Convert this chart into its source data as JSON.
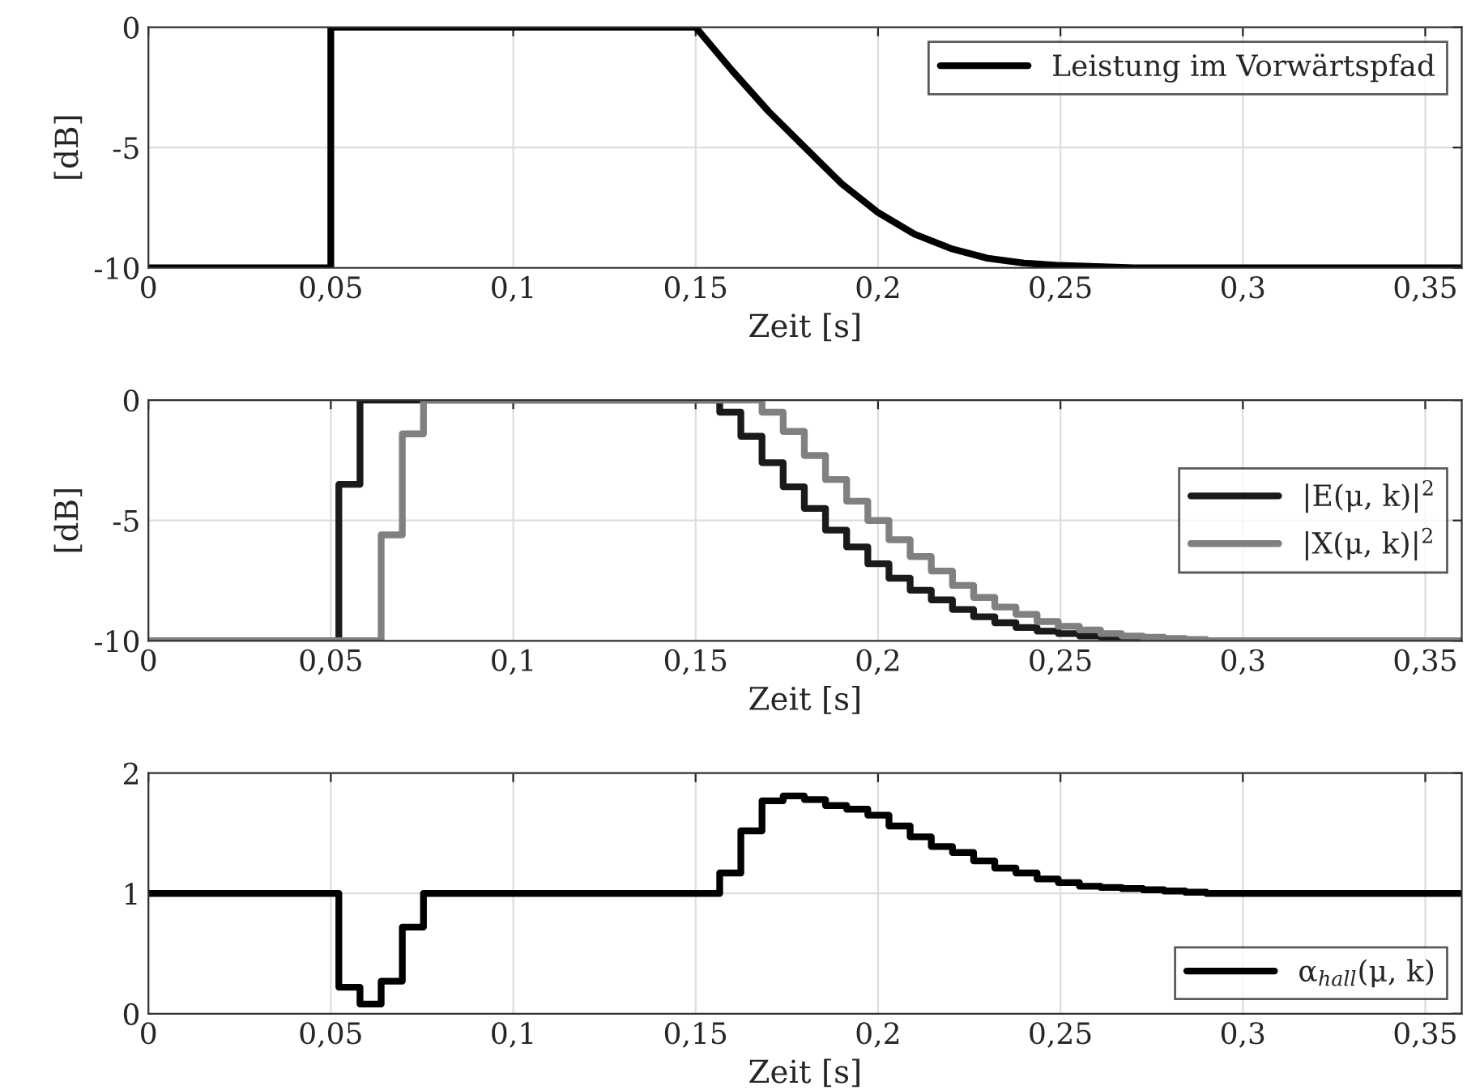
{
  "chart_data": [
    {
      "type": "line",
      "ylabel": "[dB]",
      "xlabel": "Zeit [s]",
      "xlim": [
        0,
        0.36
      ],
      "ylim": [
        -10,
        0
      ],
      "xticks": [
        0,
        {
          "value": 0.05,
          "label": "0,05"
        },
        {
          "value": 0.1,
          "label": "0,1"
        },
        {
          "value": 0.15,
          "label": "0,15"
        },
        {
          "value": 0.2,
          "label": "0,2"
        },
        {
          "value": 0.25,
          "label": "0,25"
        },
        {
          "value": 0.3,
          "label": "0,3"
        },
        {
          "value": 0.35,
          "label": "0,35"
        }
      ],
      "yticks": [
        -10,
        -5,
        0
      ],
      "grid": true,
      "legend": "top right",
      "series": [
        {
          "name": "Leistung im Vorwärtspfad",
          "color": "#000000",
          "x": [
            0,
            0.05,
            0.05,
            0.15,
            0.16,
            0.17,
            0.18,
            0.19,
            0.2,
            0.21,
            0.22,
            0.23,
            0.24,
            0.25,
            0.27,
            0.36
          ],
          "values": [
            -10,
            -10,
            0,
            0,
            -1.8,
            -3.5,
            -5.0,
            -6.5,
            -7.7,
            -8.6,
            -9.2,
            -9.6,
            -9.8,
            -9.9,
            -10,
            -10
          ]
        }
      ]
    },
    {
      "type": "step",
      "ylabel": "[dB]",
      "xlabel": "Zeit [s]",
      "xlim": [
        0,
        0.36
      ],
      "ylim": [
        -10,
        0
      ],
      "xticks": [
        0,
        {
          "value": 0.05,
          "label": "0,05"
        },
        {
          "value": 0.1,
          "label": "0,1"
        },
        {
          "value": 0.15,
          "label": "0,15"
        },
        {
          "value": 0.2,
          "label": "0,2"
        },
        {
          "value": 0.25,
          "label": "0,25"
        },
        {
          "value": 0.3,
          "label": "0,3"
        },
        {
          "value": 0.35,
          "label": "0,35"
        }
      ],
      "yticks": [
        -10,
        -5,
        0
      ],
      "grid": true,
      "legend": "right",
      "series": [
        {
          "name": "|E(μ, k)|$^{2}$",
          "color": "#1a1a1a",
          "x": [
            0,
            0.0522,
            0.058,
            0.1566,
            0.1624,
            0.1682,
            0.174,
            0.1798,
            0.1856,
            0.1914,
            0.1972,
            0.203,
            0.2088,
            0.2146,
            0.2204,
            0.2262,
            0.232,
            0.2378,
            0.2436,
            0.2494,
            0.2552,
            0.261,
            0.2668,
            0.2726,
            0.2784,
            0.36
          ],
          "values": [
            -10,
            -3.5,
            0,
            -0.5,
            -1.5,
            -2.6,
            -3.6,
            -4.5,
            -5.4,
            -6.1,
            -6.8,
            -7.4,
            -7.9,
            -8.3,
            -8.7,
            -9.0,
            -9.25,
            -9.45,
            -9.6,
            -9.7,
            -9.8,
            -9.85,
            -9.9,
            -9.95,
            -10,
            -10
          ]
        },
        {
          "name": "|X(μ, k)|$^{2}$",
          "color": "#808080",
          "x": [
            0,
            0.0638,
            0.0696,
            0.0754,
            0.1682,
            0.174,
            0.1798,
            0.1856,
            0.1914,
            0.1972,
            0.203,
            0.2088,
            0.2146,
            0.2204,
            0.2262,
            0.232,
            0.2378,
            0.2436,
            0.2494,
            0.2552,
            0.261,
            0.2668,
            0.2726,
            0.2784,
            0.2842,
            0.29,
            0.36
          ],
          "values": [
            -10,
            -5.6,
            -1.4,
            0,
            -0.5,
            -1.3,
            -2.3,
            -3.3,
            -4.2,
            -5.0,
            -5.8,
            -6.5,
            -7.1,
            -7.7,
            -8.2,
            -8.6,
            -8.9,
            -9.2,
            -9.4,
            -9.55,
            -9.7,
            -9.8,
            -9.85,
            -9.9,
            -9.95,
            -10,
            -10
          ]
        }
      ]
    },
    {
      "type": "step",
      "xlabel": "Zeit [s]",
      "xlim": [
        0,
        0.36
      ],
      "ylim": [
        0,
        2
      ],
      "xticks": [
        0,
        {
          "value": 0.05,
          "label": "0,05"
        },
        {
          "value": 0.1,
          "label": "0,1"
        },
        {
          "value": 0.15,
          "label": "0,15"
        },
        {
          "value": 0.2,
          "label": "0,2"
        },
        {
          "value": 0.25,
          "label": "0,25"
        },
        {
          "value": 0.3,
          "label": "0,3"
        },
        {
          "value": 0.35,
          "label": "0,35"
        }
      ],
      "yticks": [
        0,
        1,
        2
      ],
      "grid": true,
      "legend": "bottom right",
      "series": [
        {
          "name": "α$_{hall}$(μ, k)",
          "color": "#000000",
          "x": [
            0,
            0.0522,
            0.058,
            0.0638,
            0.0696,
            0.0754,
            0.1566,
            0.1624,
            0.1682,
            0.174,
            0.1798,
            0.1856,
            0.1914,
            0.1972,
            0.203,
            0.2088,
            0.2146,
            0.2204,
            0.2262,
            0.232,
            0.2378,
            0.2436,
            0.2494,
            0.2552,
            0.261,
            0.2668,
            0.2726,
            0.2784,
            0.2842,
            0.29,
            0.36
          ],
          "values": [
            1,
            0.22,
            0.08,
            0.27,
            0.72,
            1,
            1.17,
            1.52,
            1.77,
            1.81,
            1.78,
            1.73,
            1.7,
            1.65,
            1.56,
            1.47,
            1.39,
            1.34,
            1.27,
            1.21,
            1.17,
            1.12,
            1.09,
            1.06,
            1.05,
            1.04,
            1.03,
            1.02,
            1.01,
            1.0,
            1.0
          ]
        }
      ]
    }
  ]
}
